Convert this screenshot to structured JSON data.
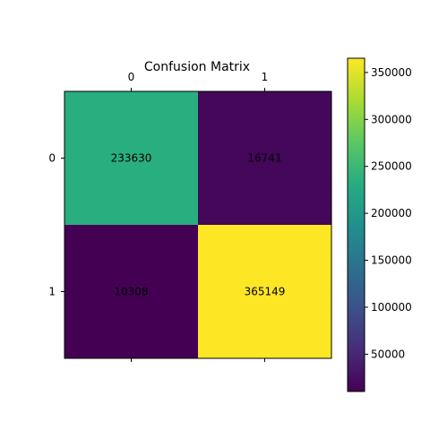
{
  "chart_data": {
    "type": "heatmap",
    "title": "Confusion Matrix",
    "xlabel": "",
    "ylabel": "",
    "x_categories": [
      "0",
      "1"
    ],
    "y_categories": [
      "0",
      "1"
    ],
    "values": [
      [
        233630,
        16741
      ],
      [
        10308,
        365149
      ]
    ],
    "cell_labels": [
      [
        "233630",
        "16741"
      ],
      [
        "10308",
        "365149"
      ]
    ],
    "colormap": "viridis",
    "colorbar": {
      "min": 10308,
      "max": 365149,
      "ticks": [
        50000,
        100000,
        150000,
        200000,
        250000,
        300000,
        350000
      ],
      "tick_labels": [
        "50000",
        "100000",
        "150000",
        "200000",
        "250000",
        "300000",
        "350000"
      ]
    },
    "x_ticks_position": "top",
    "grid": false
  }
}
